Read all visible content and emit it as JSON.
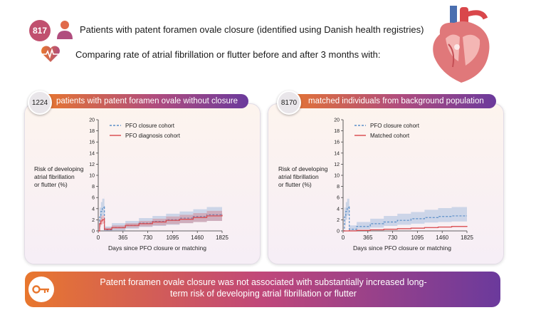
{
  "header": {
    "count": "817",
    "line1": "Patients with patent foramen ovale closure (identified using Danish health registries)",
    "line2": "Comparing rate of atrial fibrillation or flutter before and after 3 months with:"
  },
  "panels": [
    {
      "count": "1224",
      "title": "patients with patent foramen ovale without closure",
      "ylabel": "Risk of developing\natrial fibrillation\nor flutter (%)"
    },
    {
      "count": "8170",
      "title": "matched individuals from background population",
      "ylabel": "Risk of developing\natrial fibrillation\nor flutter (%)"
    }
  ],
  "footer": {
    "text": "Patent foramen ovale closure was not associated with substantially increased long-term risk of developing atrial fibrillation or flutter"
  },
  "colors": {
    "blue": "#5b8fc8",
    "red": "#d9474b",
    "orange": "#e8772e",
    "purple": "#6b3a9c"
  },
  "icons": [
    "patient-icon",
    "heart-rate-icon",
    "heart-anatomy-icon",
    "key-icon"
  ],
  "chart_data": [
    {
      "type": "line",
      "xlabel": "Days since PFO closure or matching",
      "ylabel": "Risk of developing atrial fibrillation or flutter (%)",
      "xticks": [
        0,
        365,
        730,
        1095,
        1460,
        1825
      ],
      "yticks": [
        0,
        2,
        4,
        6,
        8,
        10,
        12,
        14,
        16,
        18,
        20
      ],
      "xlim": [
        0,
        1825
      ],
      "ylim": [
        0,
        20
      ],
      "legend_position": "top-left",
      "series": [
        {
          "name": "PFO closure cohort",
          "style": "dashed",
          "color": "#5b8fc8",
          "x": [
            0,
            20,
            40,
            60,
            90,
            91,
            200,
            400,
            600,
            800,
            1000,
            1200,
            1400,
            1600,
            1825
          ],
          "y": [
            0,
            2.5,
            3.5,
            4.2,
            4.5,
            0.2,
            0.6,
            1.0,
            1.4,
            1.7,
            2.0,
            2.3,
            2.6,
            2.9,
            3.1
          ],
          "lower": [
            0,
            1.0,
            2.0,
            2.8,
            3.2,
            0.0,
            0.1,
            0.4,
            0.7,
            0.9,
            1.1,
            1.4,
            1.6,
            1.8,
            2.0
          ],
          "upper": [
            0,
            4.2,
            5.2,
            5.8,
            6.2,
            0.8,
            1.4,
            1.8,
            2.3,
            2.7,
            3.1,
            3.5,
            3.9,
            4.3,
            4.6
          ]
        },
        {
          "name": "PFO diagnosis cohort",
          "style": "solid",
          "color": "#d9474b",
          "x": [
            0,
            20,
            40,
            60,
            90,
            91,
            200,
            400,
            600,
            800,
            1000,
            1200,
            1400,
            1600,
            1825
          ],
          "y": [
            0,
            1.3,
            1.8,
            2.0,
            2.2,
            0.3,
            0.6,
            1.0,
            1.3,
            1.6,
            1.9,
            2.1,
            2.4,
            2.7,
            2.9
          ],
          "lower": [
            0,
            0.7,
            1.1,
            1.3,
            1.5,
            0.1,
            0.3,
            0.6,
            0.8,
            1.0,
            1.2,
            1.4,
            1.6,
            1.8,
            2.0
          ],
          "upper": [
            0,
            2.0,
            2.6,
            2.8,
            3.0,
            0.6,
            1.0,
            1.4,
            1.8,
            2.2,
            2.6,
            2.9,
            3.2,
            3.6,
            4.0
          ]
        }
      ]
    },
    {
      "type": "line",
      "xlabel": "Days since PFO closure or matching",
      "ylabel": "Risk of developing atrial fibrillation or flutter (%)",
      "xticks": [
        0,
        365,
        730,
        1095,
        1460,
        1825
      ],
      "yticks": [
        0,
        2,
        4,
        6,
        8,
        10,
        12,
        14,
        16,
        18,
        20
      ],
      "xlim": [
        0,
        1825
      ],
      "ylim": [
        0,
        20
      ],
      "legend_position": "top-left",
      "series": [
        {
          "name": "PFO closure cohort",
          "style": "dashed",
          "color": "#5b8fc8",
          "x": [
            0,
            20,
            40,
            60,
            90,
            91,
            200,
            400,
            600,
            800,
            1000,
            1200,
            1400,
            1600,
            1825
          ],
          "y": [
            0,
            2.5,
            3.5,
            4.2,
            4.5,
            0.3,
            0.8,
            1.3,
            1.6,
            1.9,
            2.2,
            2.4,
            2.6,
            2.7,
            2.7
          ],
          "lower": [
            0,
            1.0,
            2.0,
            2.8,
            3.2,
            0.0,
            0.3,
            0.6,
            0.9,
            1.1,
            1.3,
            1.5,
            1.6,
            1.7,
            1.7
          ],
          "upper": [
            0,
            4.2,
            5.2,
            5.8,
            6.2,
            1.0,
            1.6,
            2.2,
            2.7,
            3.1,
            3.4,
            3.8,
            4.1,
            4.3,
            4.4
          ]
        },
        {
          "name": "Matched cohort",
          "style": "solid",
          "color": "#d9474b",
          "x": [
            0,
            90,
            91,
            200,
            400,
            600,
            800,
            1000,
            1200,
            1400,
            1600,
            1825
          ],
          "y": [
            0,
            0.1,
            0.0,
            0.1,
            0.2,
            0.3,
            0.4,
            0.5,
            0.6,
            0.7,
            0.8,
            0.9
          ],
          "lower": [
            0,
            0.0,
            0.0,
            0.0,
            0.1,
            0.2,
            0.3,
            0.4,
            0.5,
            0.6,
            0.7,
            0.7
          ],
          "upper": [
            0,
            0.2,
            0.1,
            0.2,
            0.3,
            0.4,
            0.5,
            0.6,
            0.7,
            0.8,
            0.9,
            1.1
          ]
        }
      ]
    }
  ]
}
